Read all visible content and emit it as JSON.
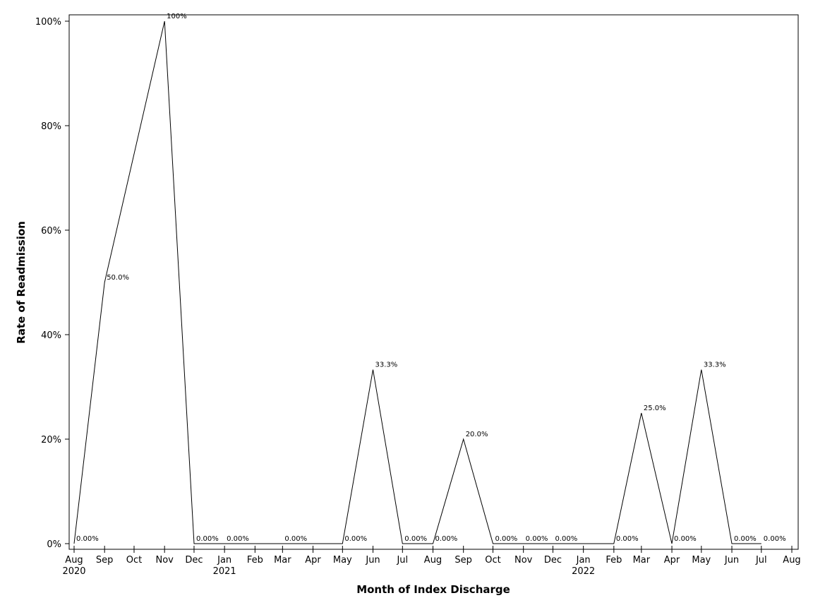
{
  "chart_data": {
    "type": "line",
    "title": "",
    "xlabel": "Month of Index Discharge",
    "ylabel": "Rate of Readmission",
    "x": [
      "2020-08",
      "2020-09",
      "2020-11",
      "2020-12",
      "2021-01",
      "2021-03",
      "2021-05",
      "2021-06",
      "2021-07",
      "2021-08",
      "2021-09",
      "2021-10",
      "2021-11",
      "2021-12",
      "2022-02",
      "2022-03",
      "2022-04",
      "2022-05",
      "2022-06",
      "2022-07"
    ],
    "values": [
      0,
      50,
      100,
      0,
      0,
      0,
      0,
      33.3,
      0,
      0,
      20,
      0,
      0,
      0,
      0,
      25,
      0,
      33.3,
      0,
      0
    ],
    "data_labels": [
      "0.00%",
      "50.0%",
      "100%",
      "0.00%",
      "0.00%",
      "0.00%",
      "0.00%",
      "33.3%",
      "0.00%",
      "0.00%",
      "20.0%",
      "0.00%",
      "0.00%",
      "0.00%",
      "0.00%",
      "25.0%",
      "0.00%",
      "33.3%",
      "0.00%",
      "0.00%"
    ],
    "ylim": [
      0,
      100
    ],
    "y_ticks": [
      0,
      20,
      40,
      60,
      80,
      100
    ],
    "y_tick_labels": [
      "0%",
      "20%",
      "40%",
      "60%",
      "80%",
      "100%"
    ],
    "x_ticks": [
      "2020-08",
      "2020-09",
      "2020-10",
      "2020-11",
      "2020-12",
      "2021-01",
      "2021-02",
      "2021-03",
      "2021-04",
      "2021-05",
      "2021-06",
      "2021-07",
      "2021-08",
      "2021-09",
      "2021-10",
      "2021-11",
      "2021-12",
      "2022-01",
      "2022-02",
      "2022-03",
      "2022-04",
      "2022-05",
      "2022-06",
      "2022-07",
      "2022-08"
    ],
    "x_tick_labels": [
      "Aug",
      "Sep",
      "Oct",
      "Nov",
      "Dec",
      "Jan",
      "Feb",
      "Mar",
      "Apr",
      "May",
      "Jun",
      "Jul",
      "Aug",
      "Sep",
      "Oct",
      "Nov",
      "Dec",
      "Jan",
      "Feb",
      "Mar",
      "Apr",
      "May",
      "Jun",
      "Jul",
      "Aug"
    ],
    "year_labels": [
      {
        "month": "2020-08",
        "label": "2020"
      },
      {
        "month": "2021-01",
        "label": "2021"
      },
      {
        "month": "2022-01",
        "label": "2022"
      }
    ],
    "grid": false,
    "legend": "none",
    "line_color": "#000000"
  }
}
